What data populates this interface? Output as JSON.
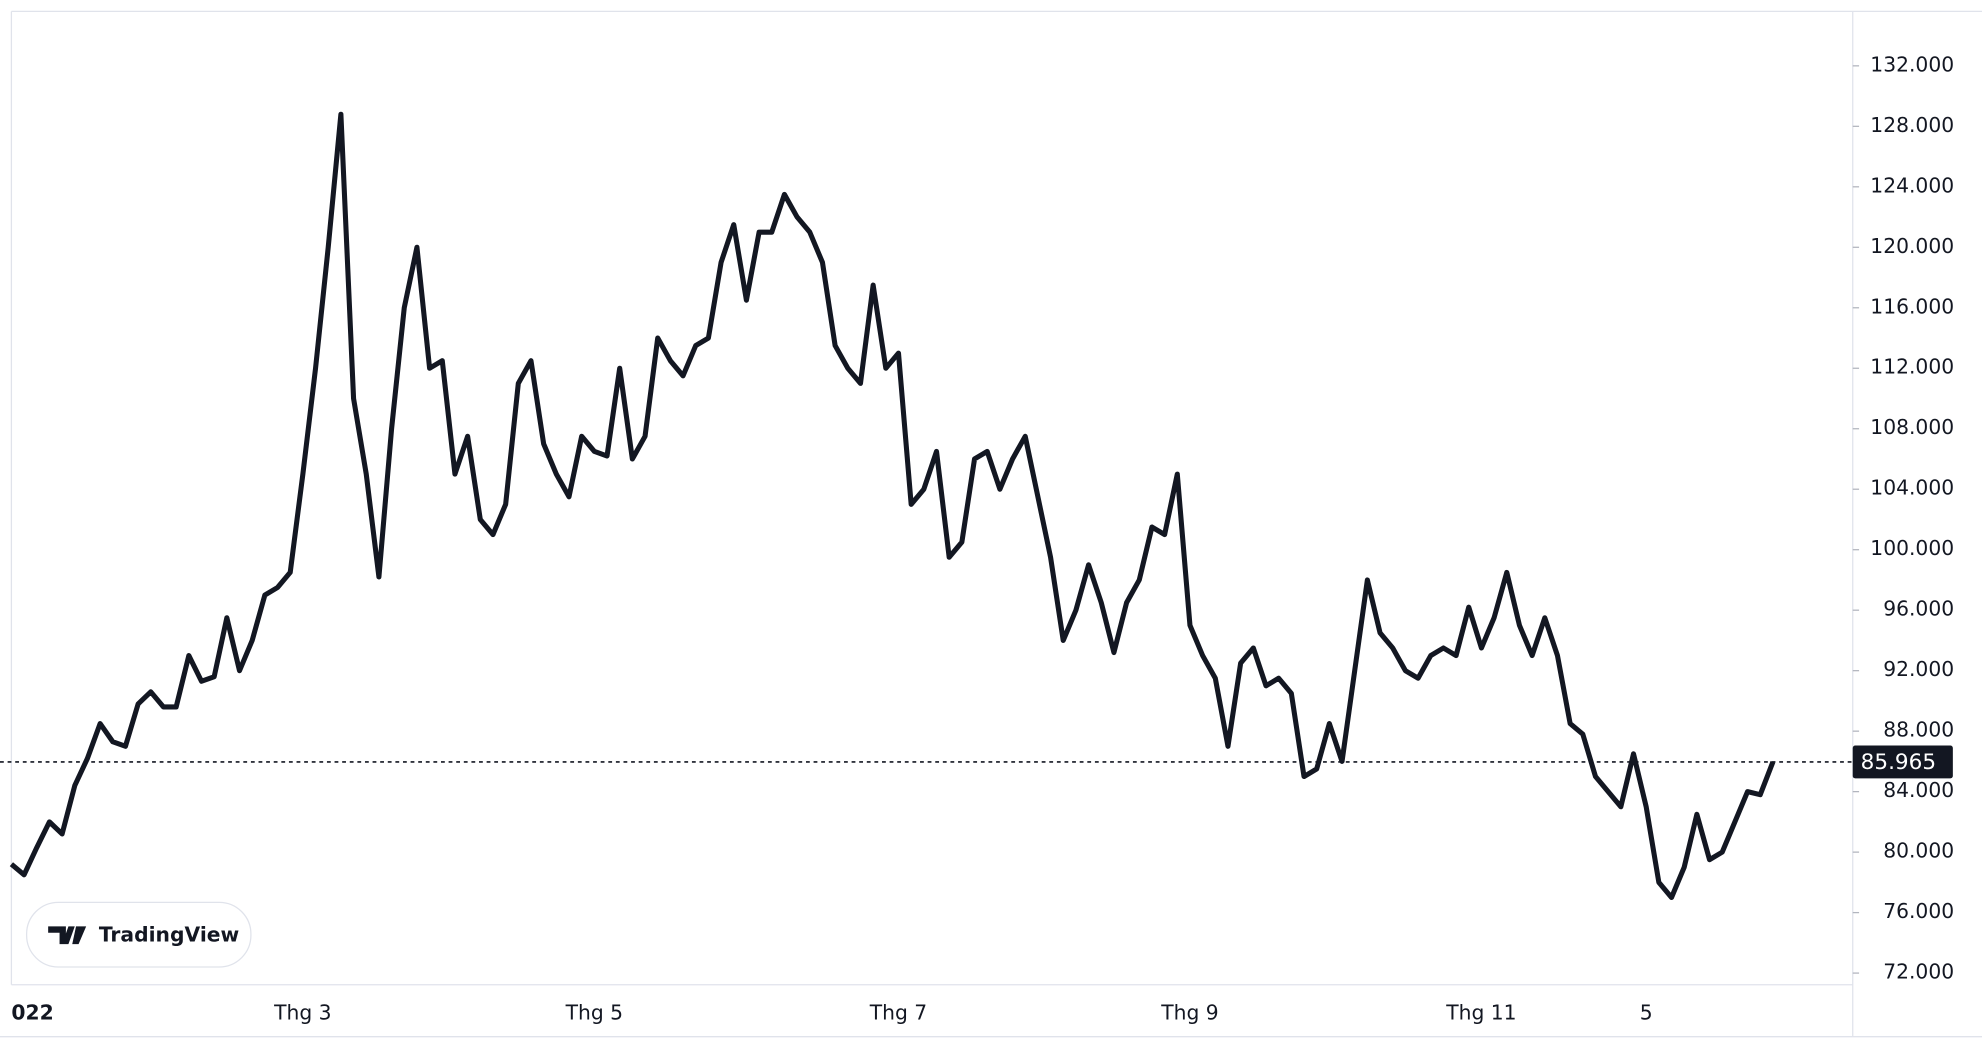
{
  "chart_data": {
    "type": "line",
    "color": "#131722",
    "watermark": "TradingView",
    "categories": [
      "022",
      null,
      null,
      null,
      null,
      null,
      null,
      null,
      null,
      null,
      null,
      null,
      null,
      null,
      null,
      null,
      null,
      null,
      null,
      null,
      null,
      null,
      null,
      "Thg 3",
      null,
      null,
      null,
      null,
      null,
      null,
      null,
      null,
      null,
      null,
      null,
      null,
      null,
      null,
      null,
      null,
      null,
      null,
      null,
      null,
      null,
      null,
      "Thg 5",
      null,
      null,
      null,
      null,
      null,
      null,
      null,
      null,
      null,
      null,
      null,
      null,
      null,
      null,
      null,
      null,
      null,
      null,
      null,
      null,
      null,
      null,
      null,
      "Thg 7",
      null,
      null,
      null,
      null,
      null,
      null,
      null,
      null,
      null,
      null,
      null,
      null,
      null,
      null,
      null,
      null,
      null,
      null,
      null,
      null,
      null,
      null,
      "Thg 9",
      null,
      null,
      null,
      null,
      null,
      null,
      null,
      null,
      null,
      null,
      null,
      null,
      null,
      null,
      null,
      null,
      null,
      null,
      null,
      null,
      null,
      null,
      "Thg 11",
      null,
      null,
      null,
      null,
      null,
      null,
      null,
      null,
      null,
      null,
      null,
      null,
      "5",
      null,
      null,
      null,
      null,
      null,
      null,
      null,
      null,
      null,
      null
    ],
    "values": [
      79200,
      78500,
      80300,
      82000,
      81200,
      84400,
      86200,
      88500,
      87300,
      87000,
      89800,
      90600,
      89600,
      89600,
      93000,
      91300,
      91600,
      95500,
      92000,
      94000,
      97000,
      97500,
      98500,
      105000,
      112000,
      120000,
      128800,
      110000,
      105000,
      98200,
      108000,
      116000,
      120000,
      112000,
      112500,
      105000,
      107500,
      102000,
      101000,
      103000,
      111000,
      112500,
      107000,
      105000,
      103500,
      107500,
      106500,
      106200,
      112000,
      106000,
      107500,
      114000,
      112500,
      111500,
      113500,
      114000,
      119000,
      121500,
      116500,
      121000,
      121000,
      123500,
      122000,
      121000,
      119000,
      113500,
      112000,
      111000,
      117500,
      112000,
      113000,
      103000,
      104000,
      106500,
      99500,
      100500,
      106000,
      106500,
      104000,
      106000,
      107500,
      103500,
      99500,
      94000,
      96000,
      99000,
      96500,
      93200,
      96500,
      98000,
      101500,
      101000,
      105000,
      95000,
      93000,
      91500,
      87000,
      92500,
      93500,
      91000,
      91500,
      90500,
      85000,
      85500,
      88500,
      86000,
      92000,
      98000,
      94500,
      93500,
      92000,
      91500,
      93000,
      93500,
      93000,
      96200,
      93500,
      95500,
      98500,
      95000,
      93000,
      95500,
      93000,
      88500,
      87800,
      85000,
      84000,
      83000,
      86500,
      83000,
      78000,
      77000,
      79000,
      82500,
      79500,
      80000,
      82000,
      84000,
      83800,
      85965
    ],
    "last_price": {
      "value": 85965,
      "label": "85.965"
    },
    "ylim": [
      71230,
      135600
    ],
    "yticks": [
      {
        "value": 72000,
        "label": "72.000"
      },
      {
        "value": 76000,
        "label": "76.000"
      },
      {
        "value": 80000,
        "label": "80.000"
      },
      {
        "value": 84000,
        "label": "84.000"
      },
      {
        "value": 88000,
        "label": "88.000"
      },
      {
        "value": 92000,
        "label": "92.000"
      },
      {
        "value": 96000,
        "label": "96.000"
      },
      {
        "value": 100000,
        "label": "100.000"
      },
      {
        "value": 104000,
        "label": "104.000"
      },
      {
        "value": 108000,
        "label": "108.000"
      },
      {
        "value": 112000,
        "label": "112.000"
      },
      {
        "value": 116000,
        "label": "116.000"
      },
      {
        "value": 120000,
        "label": "120.000"
      },
      {
        "value": 124000,
        "label": "124.000"
      },
      {
        "value": 128000,
        "label": "128.000"
      },
      {
        "value": 132000,
        "label": "132.000"
      }
    ]
  }
}
